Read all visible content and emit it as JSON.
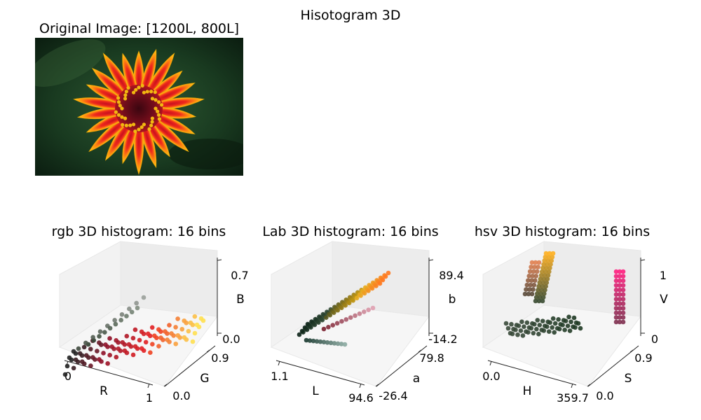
{
  "figure": {
    "suptitle": "Hisotogram 3D"
  },
  "image_panel": {
    "title": "Original Image: [1200L, 800L]"
  },
  "chart_data": [
    {
      "type": "scatter",
      "title": "rgb 3D histogram: 16 bins",
      "xlabel": "R",
      "ylabel": "G",
      "zlabel": "B",
      "xticks": [
        "0",
        "1"
      ],
      "yticks": [
        "0.0",
        "0.9"
      ],
      "zticks": [
        "0.0",
        "0.7"
      ],
      "xlim": [
        0,
        1
      ],
      "ylim": [
        0,
        0.9
      ],
      "zlim": [
        0,
        0.7
      ],
      "bins": 16
    },
    {
      "type": "scatter",
      "title": "Lab 3D histogram: 16 bins",
      "xlabel": "L",
      "ylabel": "a",
      "zlabel": "b",
      "xticks": [
        "1.1",
        "94.6"
      ],
      "yticks": [
        "-26.4",
        "79.8"
      ],
      "zticks": [
        "-14.2",
        "89.4"
      ],
      "xlim": [
        1.1,
        94.6
      ],
      "ylim": [
        -26.4,
        79.8
      ],
      "zlim": [
        -14.2,
        89.4
      ],
      "bins": 16
    },
    {
      "type": "scatter",
      "title": "hsv 3D histogram: 16 bins",
      "xlabel": "H",
      "ylabel": "S",
      "zlabel": "V",
      "xticks": [
        "0.0",
        "359.7"
      ],
      "yticks": [
        "0.0",
        "0.9"
      ],
      "zticks": [
        "0",
        "1"
      ],
      "xlim": [
        0.0,
        359.7
      ],
      "ylim": [
        0.0,
        0.9
      ],
      "zlim": [
        0,
        1
      ],
      "bins": 16
    }
  ]
}
